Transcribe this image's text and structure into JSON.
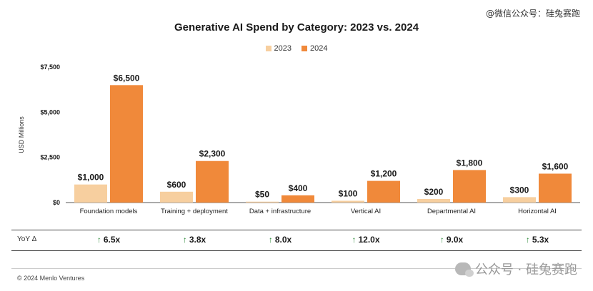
{
  "watermark_top": "@微信公众号：硅兔赛跑",
  "watermark_bottom": "公众号 · 硅兔赛跑",
  "copyright": "© 2024 Menlo Ventures",
  "yoy_label": "YoY Δ",
  "colors": {
    "series_2023": "#f7cf9f",
    "series_2024": "#f0893a",
    "arrow": "#2e8b3a"
  },
  "chart_data": {
    "type": "bar",
    "title": "Generative AI Spend by Category: 2023 vs. 2024",
    "ylabel": "USD Millions",
    "xlabel": "",
    "ylim": [
      0,
      7500
    ],
    "yticks": [
      0,
      2500,
      5000,
      7500
    ],
    "ytick_labels": [
      "$0",
      "$2,500",
      "$5,000",
      "$7,500"
    ],
    "legend_position": "top-center",
    "grid": false,
    "categories": [
      "Foundation models",
      "Training + deployment",
      "Data + infrastructure",
      "Vertical AI",
      "Departmental AI",
      "Horizontal AI"
    ],
    "series": [
      {
        "name": "2023",
        "values": [
          1000,
          600,
          50,
          100,
          200,
          300
        ],
        "labels": [
          "$1,000",
          "$600",
          "$50",
          "$100",
          "$200",
          "$300"
        ]
      },
      {
        "name": "2024",
        "values": [
          6500,
          2300,
          400,
          1200,
          1800,
          1600
        ],
        "labels": [
          "$6,500",
          "$2,300",
          "$400",
          "$1,200",
          "$1,800",
          "$1,600"
        ]
      }
    ],
    "yoy": [
      "6.5x",
      "3.8x",
      "8.0x",
      "12.0x",
      "9.0x",
      "5.3x"
    ]
  }
}
